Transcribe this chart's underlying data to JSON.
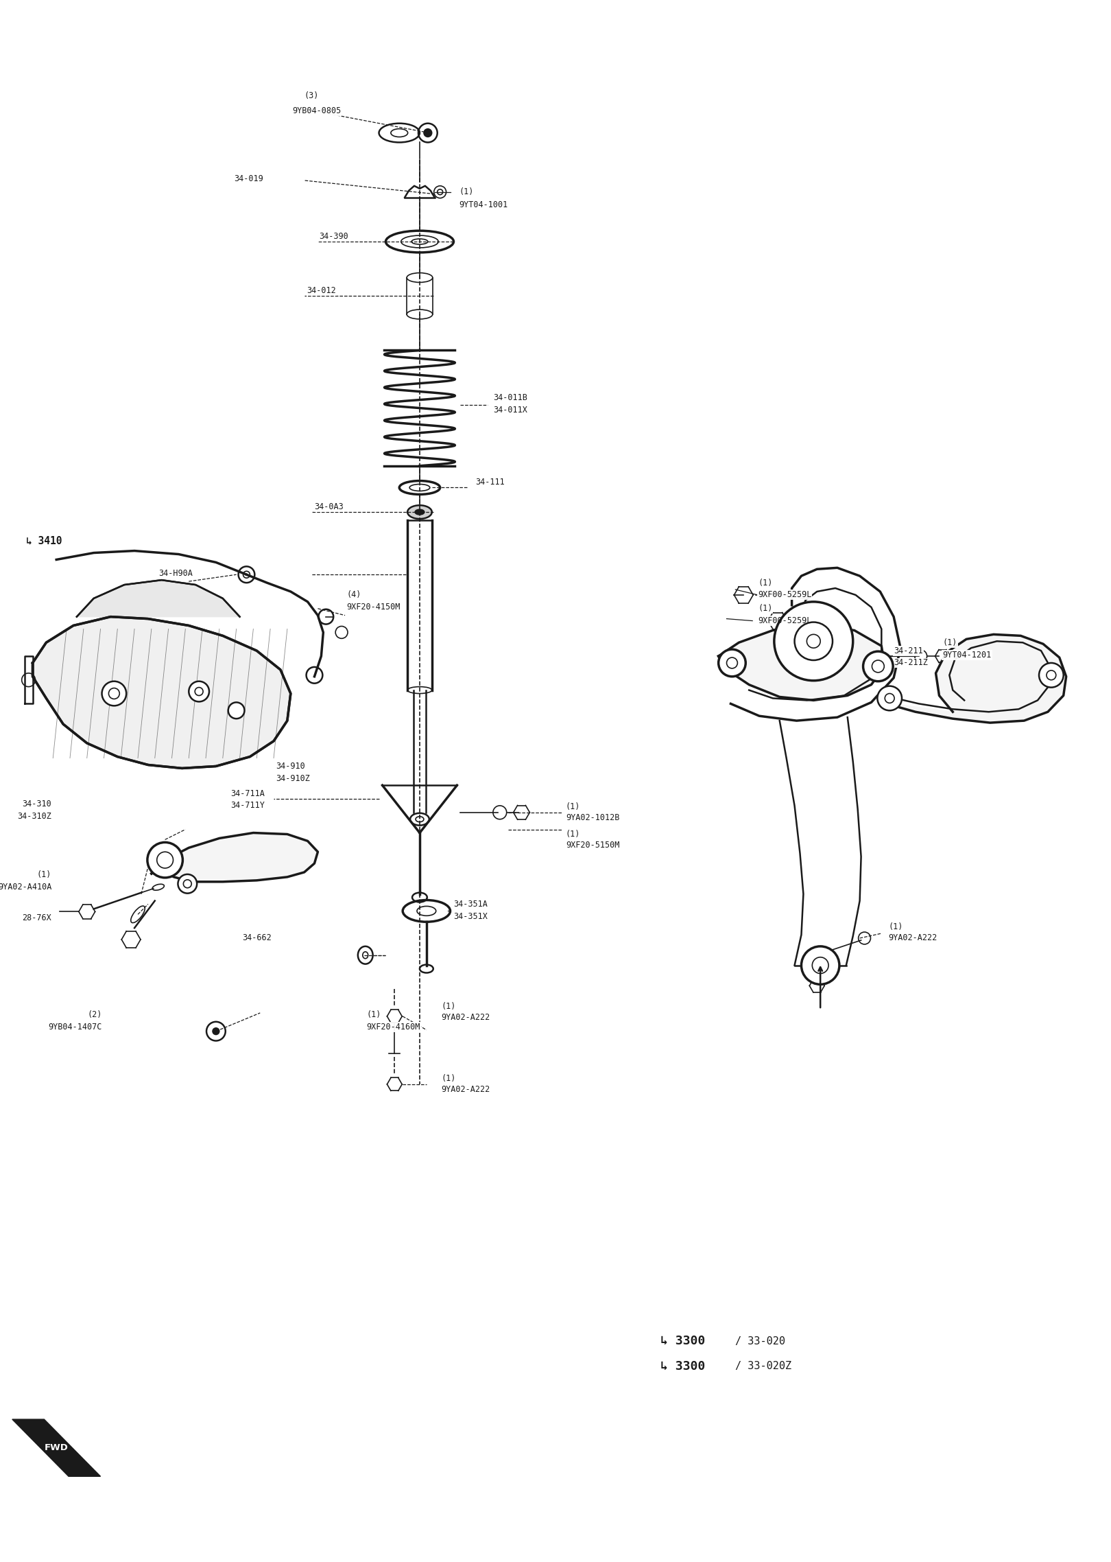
{
  "bg_color": "#ffffff",
  "header_bg": "#111111",
  "footer_bg": "#111111",
  "line_color": "#1a1a1a",
  "figsize": [
    16.2,
    22.76
  ],
  "dpi": 100,
  "labels": {
    "top_bolt": [
      "(3)",
      "9YB04-0805"
    ],
    "l34_019": "34-019",
    "l9yt04": [
      "(1)",
      "9YT04-1001"
    ],
    "l34_390": "34-390",
    "l34_012": "34-012",
    "l34_011": [
      "34-011B",
      "34-011X"
    ],
    "l34_111": "34-111",
    "l34_0a3": "34-0A3",
    "l3410": "↳ 3410",
    "l9xf20_4150": [
      "(4)",
      "9XF20-4150M"
    ],
    "l34_h90a": "34-H90A",
    "l34_910": [
      "34-910",
      "34-910Z"
    ],
    "l9xf00_1": [
      "(1)",
      "9XF00-5259L"
    ],
    "l9xf00_2": [
      "(1)",
      "9XF00-5259L"
    ],
    "l34_211": [
      "34-211",
      "34-211Z"
    ],
    "l34_711": [
      "34-711A",
      "34-711Y"
    ],
    "l9ya02_1012": [
      "(1)",
      "9YA02-1012B"
    ],
    "l9xf20_5150": [
      "(1)",
      "9XF20-5150M"
    ],
    "l34_310": [
      "34-310",
      "34-310Z"
    ],
    "l34_351": [
      "34-351A",
      "34-351X"
    ],
    "l9yt04_1201": [
      "(1)",
      "9YT04-1201"
    ],
    "l9ya02_a410": [
      "(1)",
      "9YA02-A410A"
    ],
    "l28_76x": "28-76X",
    "l34_662": "34-662",
    "l9ya02_a222_1": [
      "(1)",
      "9YA02-A222"
    ],
    "l9xf20_4160": [
      "(1)",
      "9XF20-4160M"
    ],
    "l9yb04_1407": [
      "(2)",
      "9YB04-1407C"
    ],
    "l9ya02_a222_2": [
      "(1)",
      "9YA02-A222"
    ],
    "l3300_1": [
      "↳ 3300",
      "/ 33-020"
    ],
    "l3300_2": [
      "↳ 3300",
      "/ 33-020Z"
    ]
  }
}
